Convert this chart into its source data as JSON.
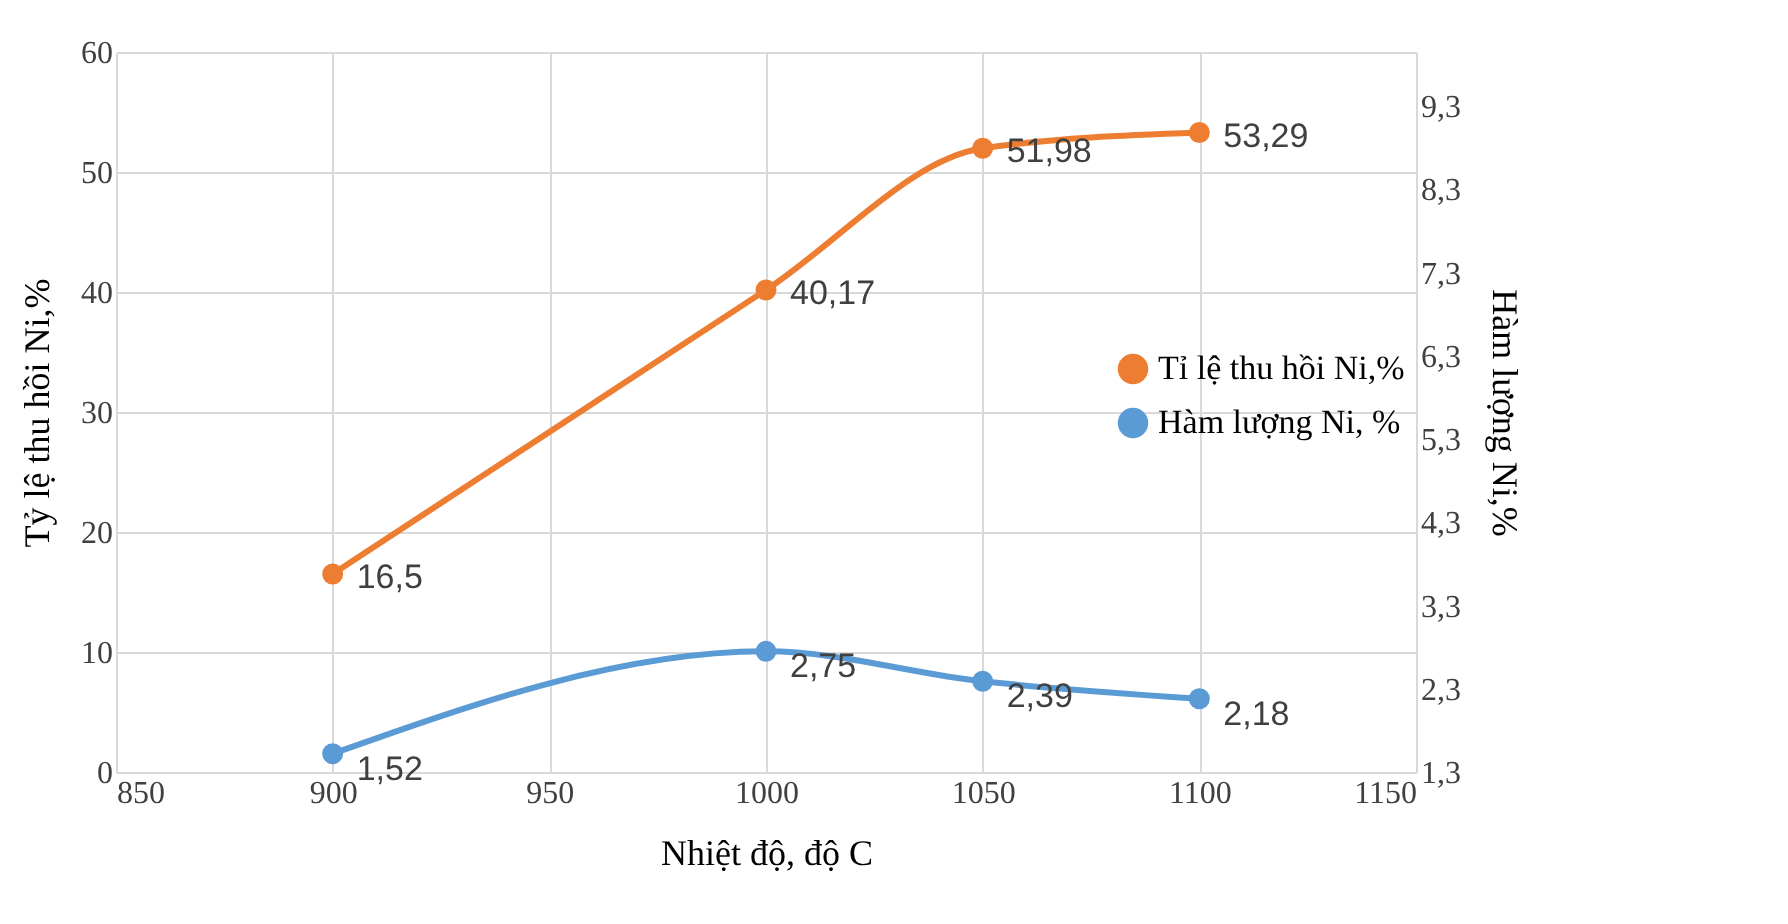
{
  "chart_data": {
    "type": "line",
    "xlabel": "Nhiệt độ,  độ C",
    "ylabel": "Tỷ lệ thu hồi Ni,%",
    "y2label": "Hàm lượng Ni,%",
    "x": [
      900,
      1000,
      1050,
      1100
    ],
    "series": [
      {
        "name": "Tỉ lệ thu hồi Ni,%",
        "color": "#ed7d31",
        "values": [
          16.5,
          40.17,
          51.98,
          53.29
        ],
        "value_labels": [
          "16,5",
          "40,17",
          "51,98",
          "53,29"
        ]
      },
      {
        "name": "Hàm lượng Ni, %",
        "color": "#5b9bd5",
        "axis": "y2",
        "values": [
          1.52,
          2.75,
          2.39,
          2.18
        ],
        "value_labels": [
          "1,52",
          "2,75",
          "2,39",
          "2,18"
        ]
      }
    ],
    "xlim": [
      850,
      1150
    ],
    "xticks": [
      850,
      900,
      950,
      1000,
      1050,
      1100,
      1150
    ],
    "ylim": [
      0,
      60
    ],
    "yticks": [
      0,
      10,
      20,
      30,
      40,
      50,
      60
    ],
    "y2lim": [
      1.3,
      9.95
    ],
    "y2ticks": [
      {
        "value": 1.3,
        "label": "1,3"
      },
      {
        "value": 2.3,
        "label": "2,3"
      },
      {
        "value": 3.3,
        "label": "3,3"
      },
      {
        "value": 4.3,
        "label": "4,3"
      },
      {
        "value": 5.3,
        "label": "5,3"
      },
      {
        "value": 6.3,
        "label": "6,3"
      },
      {
        "value": 7.3,
        "label": "7,3"
      },
      {
        "value": 8.3,
        "label": "8,3"
      },
      {
        "value": 9.3,
        "label": "9,3"
      }
    ],
    "grid": true,
    "legend": "right",
    "marker": "circle",
    "line_style": "solid"
  }
}
